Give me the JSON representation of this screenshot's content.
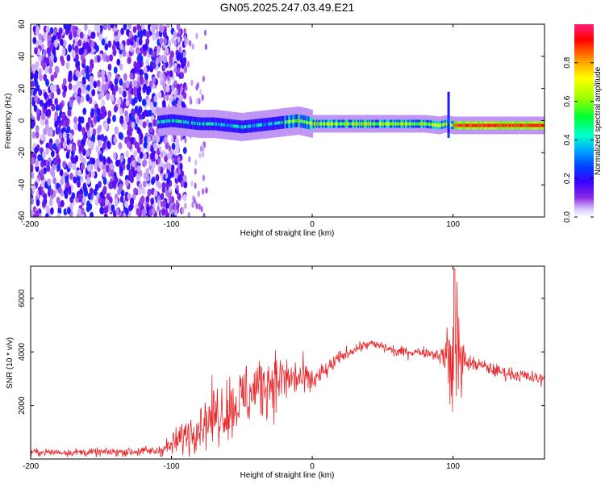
{
  "chart_data": [
    {
      "type": "heatmap",
      "title": "GN05.2025.247.03.49.E21",
      "xlabel": "Height of straight line (km)",
      "ylabel": "Frequency (Hz)",
      "xlim": [
        -200,
        165
      ],
      "ylim": [
        -60,
        60
      ],
      "xticks": [
        -200,
        -100,
        0,
        100
      ],
      "yticks": [
        60,
        40,
        20,
        0,
        -20,
        -40,
        -60
      ],
      "colorbar": {
        "label": "Normalized spectral amplitude",
        "range": [
          0,
          1
        ],
        "ticks": [
          0.0,
          0.2,
          0.4,
          0.6,
          0.8
        ],
        "colors": [
          "#ffffff",
          "#d9c8ff",
          "#8a2be2",
          "#3a00ff",
          "#0040ff",
          "#00a0ff",
          "#00ffd0",
          "#00ff30",
          "#a0ff00",
          "#ffff00",
          "#ff9000",
          "#ff0000",
          "#ff2080"
        ]
      },
      "ridge": {
        "description_x": [
          -110,
          -100,
          -90,
          -80,
          -70,
          -60,
          -50,
          -40,
          -30,
          -20,
          -10,
          0,
          20,
          40,
          60,
          80,
          90,
          95,
          100,
          110,
          130,
          165
        ],
        "frequency_hz": [
          -1,
          0,
          -1,
          -2,
          -2,
          -3,
          -4,
          -3,
          -2,
          -1,
          0,
          -2,
          -2,
          -2,
          -2,
          -2,
          -3,
          -2,
          -3,
          -3,
          -3,
          -3
        ]
      }
    },
    {
      "type": "line",
      "xlabel": "Height of straight line (km)",
      "ylabel": "SNR (10 * v/v)",
      "xlim": [
        -200,
        165
      ],
      "ylim": [
        0,
        7200
      ],
      "xticks": [
        -200,
        -100,
        0,
        100
      ],
      "yticks": [
        2000,
        4000,
        6000
      ],
      "color": "#e8262a",
      "envelope_x": [
        -200,
        -150,
        -110,
        -100,
        -90,
        -80,
        -70,
        -60,
        -50,
        -40,
        -30,
        -20,
        -10,
        0,
        10,
        20,
        30,
        40,
        50,
        60,
        70,
        80,
        90,
        95,
        100,
        102,
        105,
        110,
        120,
        130,
        140,
        150,
        165
      ],
      "envelope_y": [
        250,
        250,
        300,
        500,
        900,
        1300,
        1600,
        1900,
        2200,
        2600,
        2900,
        3000,
        3000,
        2900,
        3300,
        3800,
        4100,
        4300,
        4200,
        4000,
        4000,
        4000,
        3900,
        3800,
        3500,
        4800,
        3600,
        3600,
        3500,
        3300,
        3200,
        3100,
        2950
      ],
      "spread_y": [
        150,
        150,
        200,
        400,
        700,
        900,
        1100,
        1200,
        1300,
        1300,
        1200,
        1000,
        800,
        500,
        350,
        250,
        200,
        200,
        200,
        200,
        200,
        200,
        250,
        700,
        2800,
        2500,
        1500,
        300,
        250,
        250,
        250,
        250,
        250
      ]
    }
  ]
}
